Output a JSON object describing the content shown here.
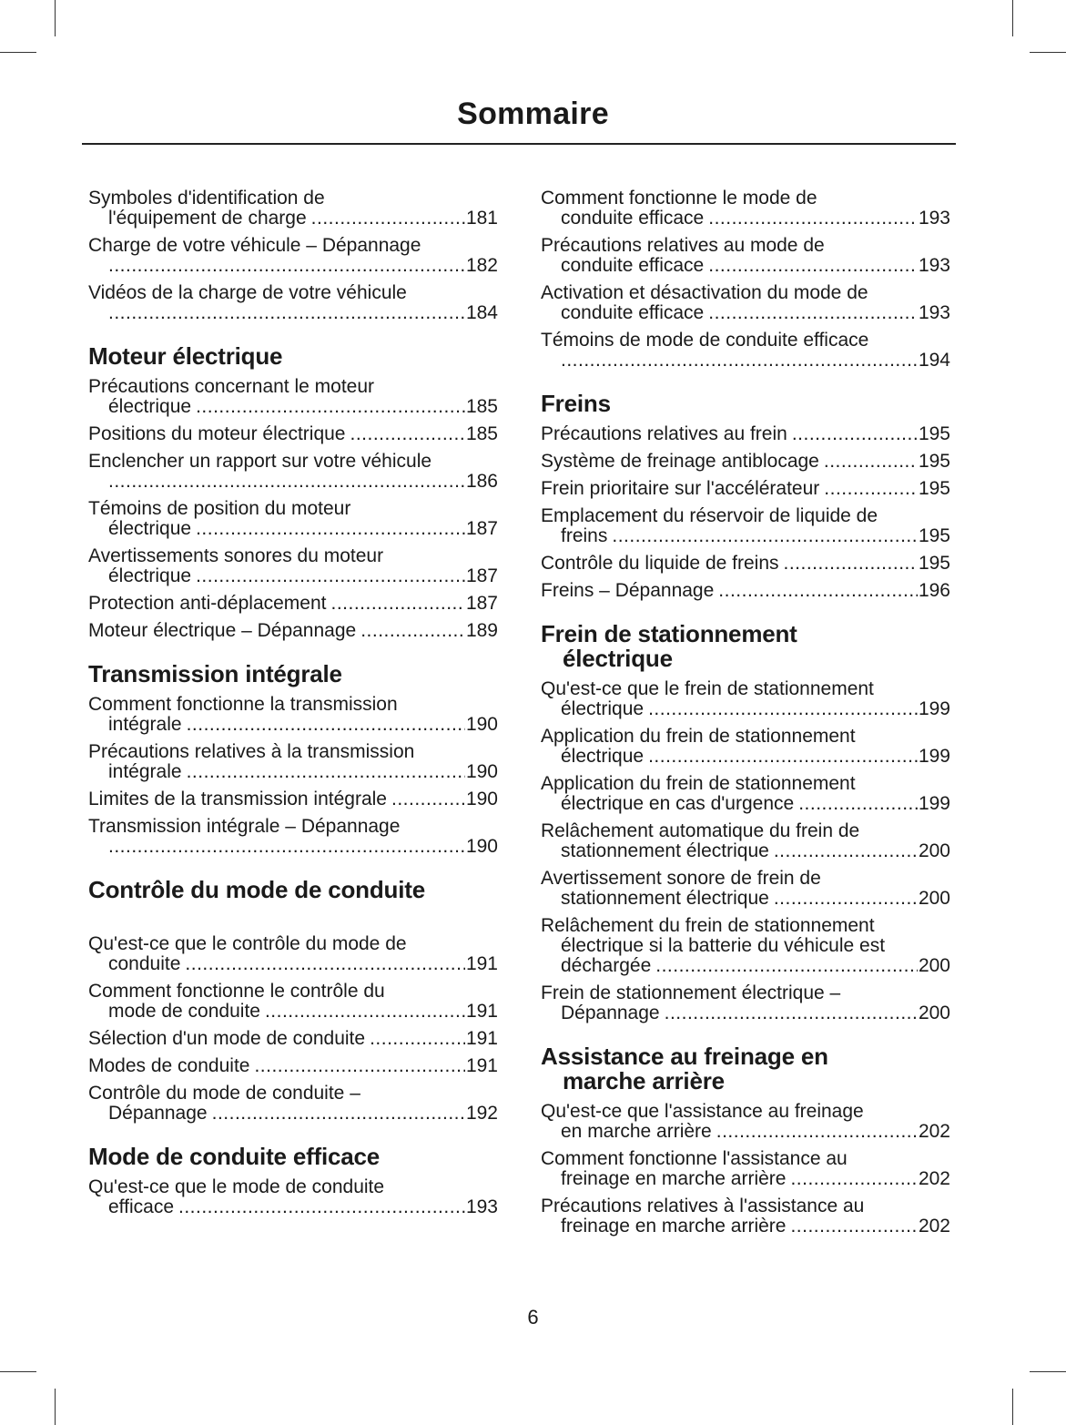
{
  "title": "Sommaire",
  "page_number": "6",
  "columns": [
    [
      {
        "heading": null,
        "entries": [
          {
            "lines": [
              "Symboles d'identification de",
              "l'équipement de charge"
            ],
            "page": "181"
          },
          {
            "lines": [
              "Charge de votre véhicule – Dépannage",
              ""
            ],
            "page": "182"
          },
          {
            "lines": [
              "Vidéos de la charge de votre véhicule",
              ""
            ],
            "page": "184"
          }
        ]
      },
      {
        "heading": [
          "Moteur électrique"
        ],
        "entries": [
          {
            "lines": [
              "Précautions concernant le moteur",
              "électrique"
            ],
            "page": "185"
          },
          {
            "lines": [
              "Positions du moteur électrique"
            ],
            "page": "185"
          },
          {
            "lines": [
              "Enclencher un rapport sur votre véhicule",
              ""
            ],
            "page": "186"
          },
          {
            "lines": [
              "Témoins de position du moteur",
              "électrique"
            ],
            "page": "187"
          },
          {
            "lines": [
              "Avertissements sonores du moteur",
              "électrique"
            ],
            "page": "187"
          },
          {
            "lines": [
              "Protection anti-déplacement"
            ],
            "page": "187"
          },
          {
            "lines": [
              "Moteur électrique – Dépannage"
            ],
            "page": "189"
          }
        ]
      },
      {
        "heading": [
          "Transmission intégrale"
        ],
        "entries": [
          {
            "lines": [
              "Comment fonctionne la transmission",
              "intégrale"
            ],
            "page": "190"
          },
          {
            "lines": [
              "Précautions relatives à la transmission",
              "intégrale"
            ],
            "page": "190"
          },
          {
            "lines": [
              "Limites de la transmission intégrale"
            ],
            "page": "190"
          },
          {
            "lines": [
              "Transmission intégrale – Dépannage",
              ""
            ],
            "page": "190"
          }
        ]
      },
      {
        "heading": [
          "Contrôle du mode de conduite"
        ],
        "spaced": true,
        "entries": [
          {
            "lines": [
              "Qu'est-ce que le contrôle du mode de",
              "conduite"
            ],
            "page": "191"
          },
          {
            "lines": [
              "Comment fonctionne le contrôle du",
              "mode de conduite"
            ],
            "page": "191"
          },
          {
            "lines": [
              "Sélection d'un mode de conduite"
            ],
            "page": "191"
          },
          {
            "lines": [
              "Modes de conduite"
            ],
            "page": "191"
          },
          {
            "lines": [
              "Contrôle du mode de conduite –",
              "Dépannage"
            ],
            "page": "192"
          }
        ]
      },
      {
        "heading": [
          "Mode de conduite efficace"
        ],
        "entries": [
          {
            "lines": [
              "Qu'est-ce que le mode de conduite",
              "efficace"
            ],
            "page": "193"
          }
        ]
      }
    ],
    [
      {
        "heading": null,
        "entries": [
          {
            "lines": [
              "Comment fonctionne le mode de",
              "conduite efficace"
            ],
            "page": "193"
          },
          {
            "lines": [
              "Précautions relatives au mode de",
              "conduite efficace"
            ],
            "page": "193"
          },
          {
            "lines": [
              "Activation et désactivation du mode de",
              "conduite efficace"
            ],
            "page": "193"
          },
          {
            "lines": [
              "Témoins de mode de conduite efficace",
              ""
            ],
            "page": "194"
          }
        ]
      },
      {
        "heading": [
          "Freins"
        ],
        "entries": [
          {
            "lines": [
              "Précautions relatives au frein"
            ],
            "page": "195"
          },
          {
            "lines": [
              "Système de freinage antiblocage"
            ],
            "page": "195"
          },
          {
            "lines": [
              "Frein prioritaire sur l'accélérateur"
            ],
            "page": "195"
          },
          {
            "lines": [
              "Emplacement du réservoir de liquide de",
              "freins"
            ],
            "page": "195"
          },
          {
            "lines": [
              "Contrôle du liquide de freins"
            ],
            "page": "195"
          },
          {
            "lines": [
              "Freins – Dépannage"
            ],
            "page": "196"
          }
        ]
      },
      {
        "heading": [
          "Frein de stationnement",
          "électrique"
        ],
        "entries": [
          {
            "lines": [
              "Qu'est-ce que le frein de stationnement",
              "électrique"
            ],
            "page": "199"
          },
          {
            "lines": [
              "Application du frein de stationnement",
              "électrique"
            ],
            "page": "199"
          },
          {
            "lines": [
              "Application du frein de stationnement",
              "électrique en cas d'urgence"
            ],
            "page": "199"
          },
          {
            "lines": [
              "Relâchement automatique du frein de",
              "stationnement électrique"
            ],
            "page": "200"
          },
          {
            "lines": [
              "Avertissement sonore de frein de",
              "stationnement électrique"
            ],
            "page": "200"
          },
          {
            "lines": [
              "Relâchement du frein de stationnement",
              "électrique si la batterie du véhicule est",
              "déchargée"
            ],
            "page": "200"
          },
          {
            "lines": [
              "Frein de stationnement électrique –",
              "Dépannage"
            ],
            "page": "200"
          }
        ]
      },
      {
        "heading": [
          "Assistance au freinage en",
          "marche arrière"
        ],
        "entries": [
          {
            "lines": [
              "Qu'est-ce que l'assistance au freinage",
              "en marche arrière"
            ],
            "page": "202"
          },
          {
            "lines": [
              "Comment fonctionne l'assistance au",
              "freinage en marche arrière"
            ],
            "page": "202"
          },
          {
            "lines": [
              "Précautions relatives à l'assistance au",
              "freinage en marche arrière"
            ],
            "page": "202"
          }
        ]
      }
    ]
  ]
}
